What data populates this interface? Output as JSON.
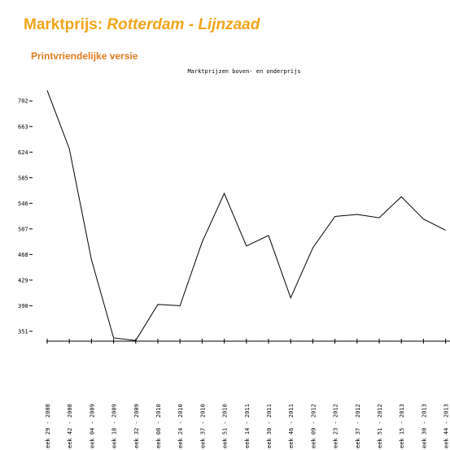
{
  "header": {
    "title": "Marktprijs:",
    "subject": "Rotterdam - Lijnzaad",
    "print_link": "Printvriendelijke versie"
  },
  "chart_data": {
    "type": "line",
    "title": "Marktprijzen boven- en onderprijs",
    "categories": [
      "eek 29 - 2008",
      "eek 42 - 2008",
      "eek 04 - 2009",
      "eek 18 - 2009",
      "eek 32 - 2009",
      "eek 08 - 2010",
      "eek 24 - 2010",
      "eek 37 - 2010",
      "eek 51 - 2010",
      "eek 14 - 2011",
      "eek 30 - 2011",
      "eek 46 - 2011",
      "eek 09 - 2012",
      "eek 23 - 2012",
      "eek 37 - 2012",
      "eek 51 - 2012",
      "eek 15 - 2013",
      "eek 30 - 2013",
      "eek 44 - 2013"
    ],
    "values": [
      718,
      629,
      460,
      341,
      337,
      392,
      390,
      487,
      561,
      481,
      497,
      402,
      478,
      526,
      529,
      524,
      556,
      522,
      505
    ],
    "color": "#000000",
    "ylim": [
      336,
      732
    ],
    "yticks": [
      351,
      390,
      429,
      468,
      507,
      546,
      585,
      624,
      663,
      702
    ]
  }
}
